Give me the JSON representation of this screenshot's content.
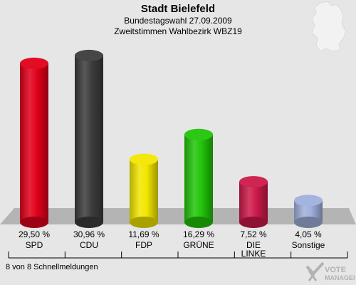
{
  "chart_data": {
    "type": "bar",
    "title": "Stadt Bielefeld",
    "subtitle": "Bundestagswahl 27.09.2009",
    "district": "Zweitstimmen Wahlbezirk WBZ19",
    "categories": [
      "SPD",
      "CDU",
      "FDP",
      "GRÜNE",
      "DIE LINKE",
      "Sonstige"
    ],
    "category_lines": [
      [
        "SPD"
      ],
      [
        "CDU"
      ],
      [
        "FDP"
      ],
      [
        "GRÜNE"
      ],
      [
        "DIE",
        "LINKE"
      ],
      [
        "Sonstige"
      ]
    ],
    "values": [
      29.5,
      30.96,
      11.69,
      16.29,
      7.52,
      4.05
    ],
    "value_labels": [
      "29,50 %",
      "30,96 %",
      "11,69 %",
      "16,29 %",
      "7,52 %",
      "4,05 %"
    ],
    "colors": [
      "#e0001a",
      "#3c3c3c",
      "#f2e600",
      "#22c40a",
      "#cc1a4a",
      "#a0b0dc"
    ],
    "ylim": [
      0,
      32
    ]
  },
  "footer": {
    "status": "8 von 8 Schnellmeldungen"
  }
}
